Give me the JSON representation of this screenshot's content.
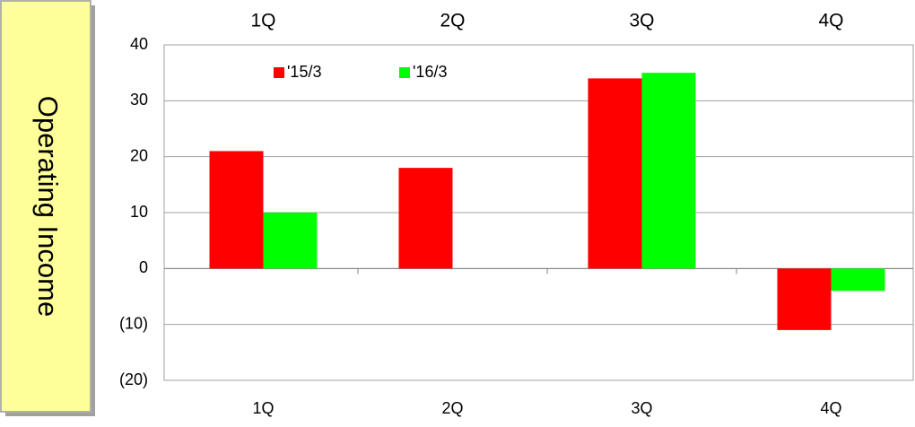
{
  "chart_data": {
    "type": "bar",
    "title": "Operating Income",
    "categories": [
      "1Q",
      "2Q",
      "3Q",
      "4Q"
    ],
    "series": [
      {
        "name": "'15/3",
        "color": "#ff0000",
        "values": [
          21,
          18,
          34,
          -11
        ]
      },
      {
        "name": "'16/3",
        "color": "#00ff00",
        "values": [
          10,
          null,
          35,
          -4
        ]
      }
    ],
    "ylim": [
      -20,
      40
    ],
    "yticks": [
      {
        "value": -20,
        "label": "(20)"
      },
      {
        "value": -10,
        "label": "(10)"
      },
      0,
      10,
      20,
      30,
      40
    ],
    "grid": true,
    "legend": "top-left"
  }
}
